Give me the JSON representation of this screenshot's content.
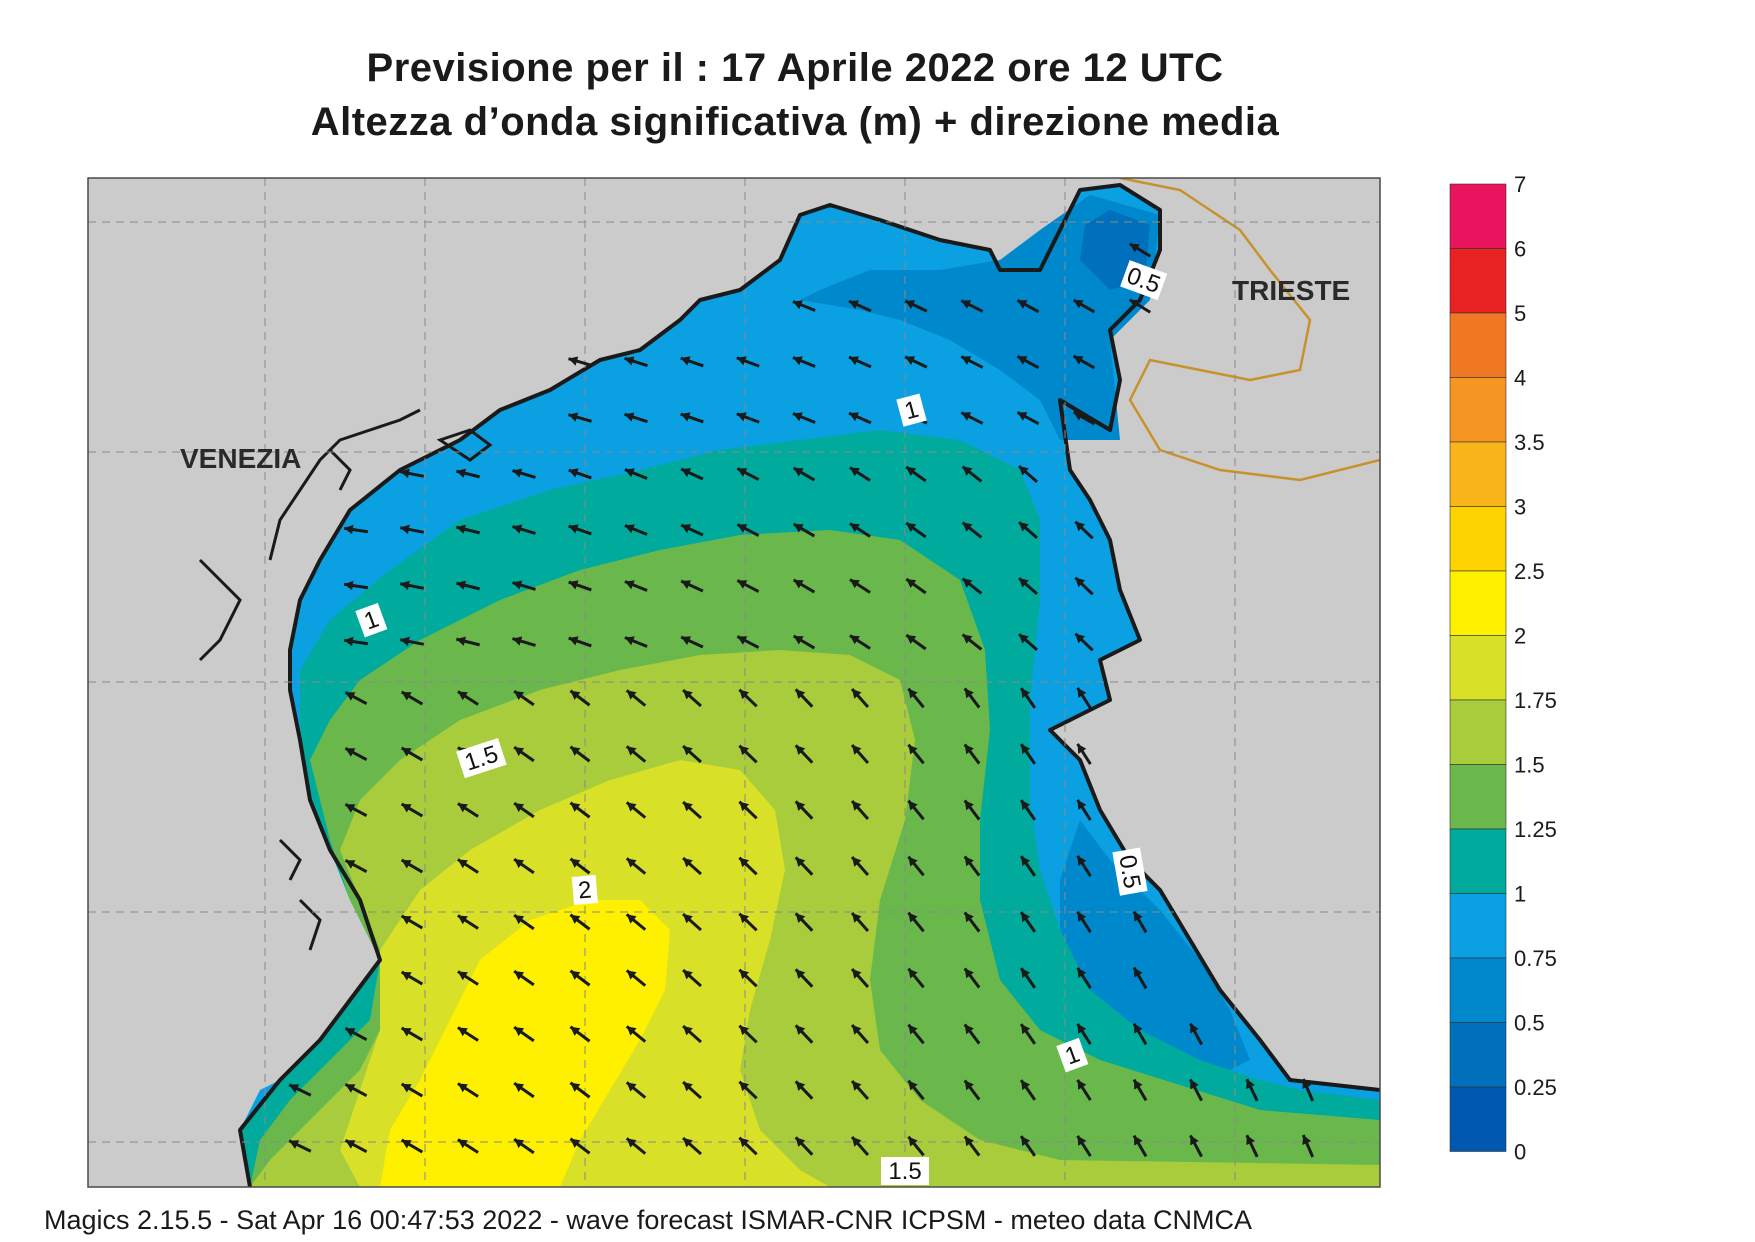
{
  "title": {
    "line1": "Previsione per il  :  17   Aprile  2022   ore 12 UTC",
    "line2": "Altezza d’onda significativa (m) + direzione media"
  },
  "places": {
    "venezia": "VENEZIA",
    "trieste": "TRIESTE"
  },
  "contour_labels": [
    "0.5",
    "1",
    "1",
    "1.5",
    "2",
    "0.5",
    "1",
    "1.5"
  ],
  "legend": {
    "ticks": [
      "7",
      "6",
      "5",
      "4",
      "3.5",
      "3",
      "2.5",
      "2",
      "1.75",
      "1.5",
      "1.25",
      "1",
      "0.75",
      "0.5",
      "0.25",
      "0"
    ],
    "colors": [
      "#e8145e",
      "#e82222",
      "#f07822",
      "#f59622",
      "#f8b418",
      "#fcd200",
      "#fff000",
      "#d8e028",
      "#a8cc3c",
      "#6ab84c",
      "#00aa9c",
      "#0aa0e2",
      "#0088cc",
      "#0070bc",
      "#0058b0"
    ]
  },
  "footer": "Magics 2.15.5 - Sat Apr 16 00:47:53 2022 - wave forecast  ISMAR-CNR  ICPSM - meteo data   CNMCA",
  "colors": {
    "land": "#cbcbcb",
    "coast": "#1a1a1a",
    "border": "#c8922a",
    "arrow": "#1a1a1a"
  }
}
